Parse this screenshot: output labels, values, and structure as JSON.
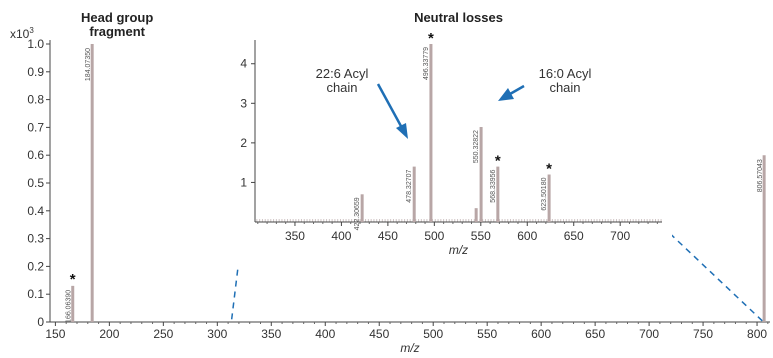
{
  "chart_data": [
    {
      "type": "bar",
      "role": "main-spectrum",
      "title": "",
      "xlabel": "m/z",
      "ylabel": "",
      "y_multiplier_label": "x10",
      "y_multiplier_exp": "3",
      "xlim": [
        145,
        812
      ],
      "ylim": [
        0,
        1.0
      ],
      "xticks": [
        "150",
        "200",
        "250",
        "300",
        "350",
        "400",
        "450",
        "500",
        "550",
        "600",
        "650",
        "700",
        "750",
        "800"
      ],
      "yticks": [
        "0",
        "0.1",
        "0.2",
        "0.3",
        "0.4",
        "0.5",
        "0.6",
        "0.7",
        "0.8",
        "0.9",
        "1.0"
      ],
      "peaks": [
        {
          "x": 166.06,
          "y": 0.13,
          "label": "166.06390",
          "starred": true
        },
        {
          "x": 184.07,
          "y": 1.0,
          "label": "184.07350",
          "starred": false
        },
        {
          "x": 806.57,
          "y": 0.6,
          "label": "806.57043",
          "starred": false
        }
      ],
      "annotations": {
        "head_group": [
          "Head group",
          "fragment"
        ]
      }
    },
    {
      "type": "bar",
      "role": "inset-spectrum",
      "title": "Neutral losses",
      "xlabel": "m/z",
      "ylabel": "",
      "xlim": [
        307,
        745
      ],
      "ylim": [
        0,
        4.6
      ],
      "xticks": [
        "350",
        "400",
        "450",
        "500",
        "550",
        "600",
        "650",
        "700"
      ],
      "yticks": [
        "1",
        "2",
        "3",
        "4"
      ],
      "peaks": [
        {
          "x": 422.31,
          "y": 0.7,
          "label": "422.30659",
          "starred": false
        },
        {
          "x": 478.33,
          "y": 1.4,
          "label": "478.32707",
          "starred": false
        },
        {
          "x": 496.34,
          "y": 4.5,
          "label": "496.33779",
          "starred": true
        },
        {
          "x": 545.0,
          "y": 0.35,
          "label": "",
          "starred": false
        },
        {
          "x": 550.32,
          "y": 2.4,
          "label": "550.32822",
          "starred": false
        },
        {
          "x": 568.34,
          "y": 1.4,
          "label": "568.33956",
          "starred": true
        },
        {
          "x": 623.51,
          "y": 1.2,
          "label": "623.50180",
          "starred": true
        }
      ],
      "annotations": {
        "acyl_226": [
          "22:6 Acyl",
          "chain"
        ],
        "acyl_160": [
          "16:0 Acyl",
          "chain"
        ]
      },
      "arrow_color": "#1f6fb5",
      "zoom_line_color": "#1f6fb5"
    }
  ]
}
